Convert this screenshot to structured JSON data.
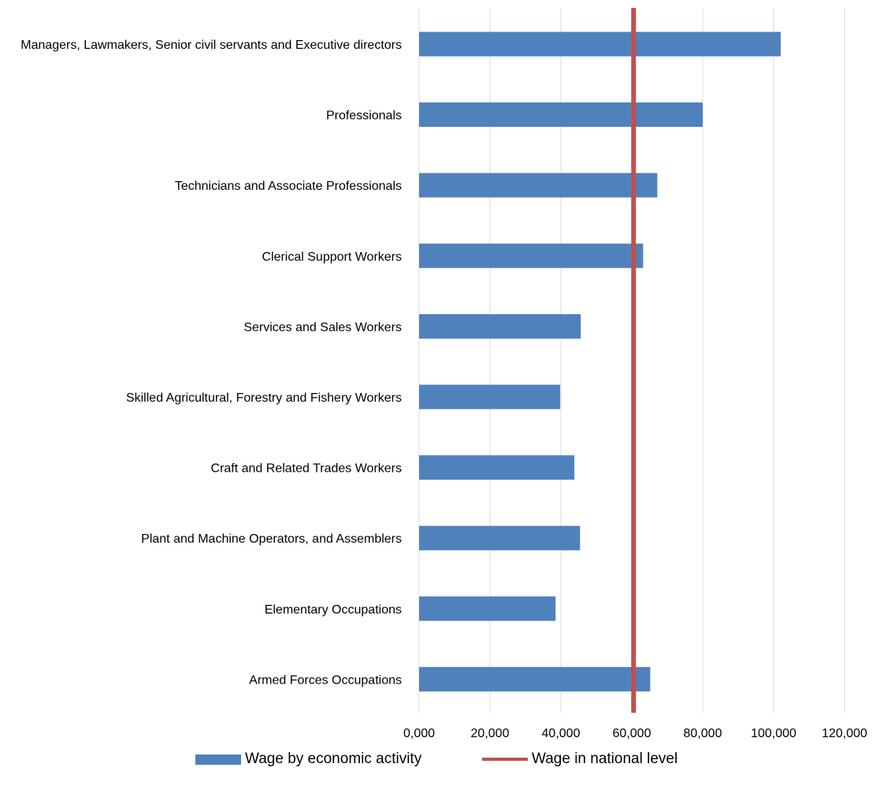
{
  "chart_data": {
    "type": "bar",
    "orientation": "horizontal",
    "categories": [
      "Managers, Lawmakers, Senior civil servants and Executive directors",
      "Professionals",
      "Technicians and Associate Professionals",
      "Clerical Support Workers",
      "Services and Sales Workers",
      "Skilled Agricultural, Forestry and Fishery Workers",
      "Craft and Related Trades Workers",
      "Plant and Machine Operators, and Assemblers",
      "Elementary Occupations",
      "Armed Forces Occupations"
    ],
    "series": [
      {
        "name": "Wage by economic activity",
        "kind": "bar",
        "color": "#4F81BD",
        "values": [
          102000,
          80000,
          67200,
          63200,
          45600,
          39800,
          43800,
          45400,
          38500,
          65200
        ]
      },
      {
        "name": "Wage in national level",
        "kind": "reference-line",
        "color": "#C0504D",
        "value": 60500
      }
    ],
    "xlim": [
      0,
      120000
    ],
    "xticks": [
      "0,000",
      "20,000",
      "40,000",
      "60,000",
      "80,000",
      "100,000",
      "120,000"
    ],
    "grid": "vertical",
    "legend_position": "bottom",
    "title": "",
    "xlabel": "",
    "ylabel": ""
  }
}
